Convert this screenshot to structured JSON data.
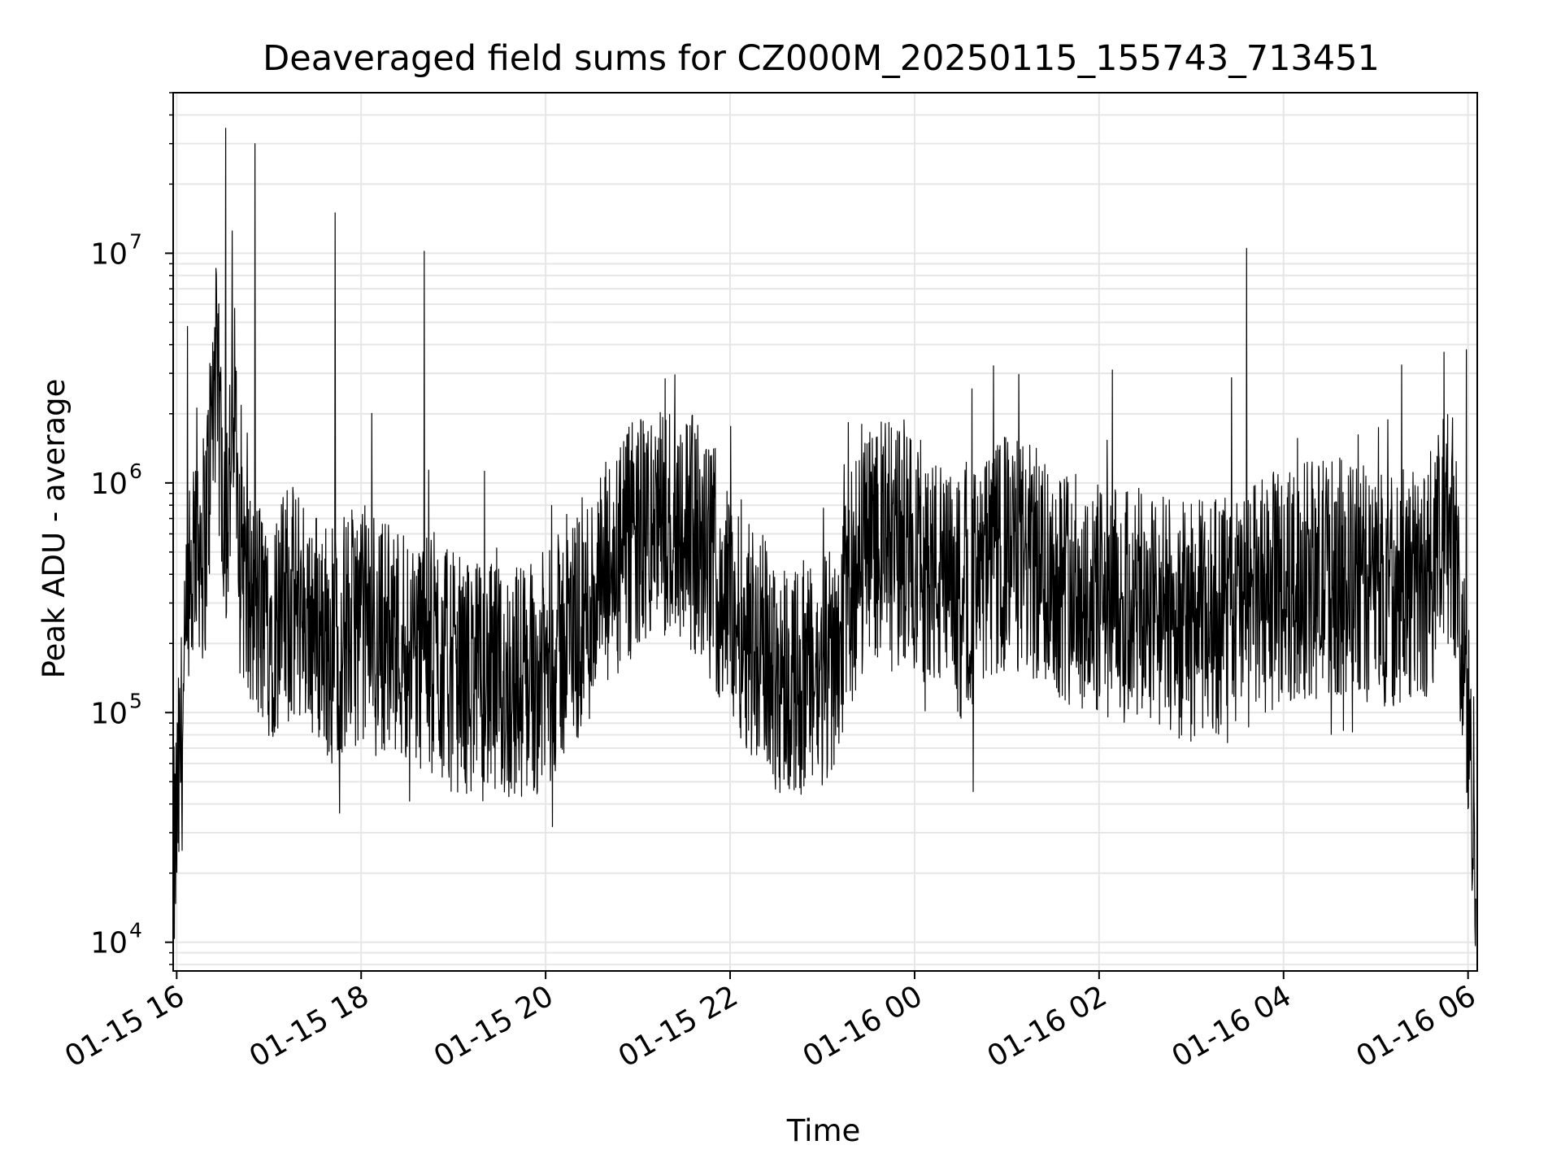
{
  "chart_data": {
    "type": "line",
    "title": "Deaveraged field sums for CZ000M_20250115_155743_713451",
    "xlabel": "Time",
    "ylabel": "Peak ADU - average",
    "yscale": "log",
    "ylim": [
      7500,
      50000000
    ],
    "xlim": [
      "2025-01-15T15:57:43",
      "2025-01-16T06:06:00"
    ],
    "grid": true,
    "line_color": "#000000",
    "grid_color": "#e6e6e6",
    "x_ticks": [
      "01-15 16",
      "01-15 18",
      "01-15 20",
      "01-15 22",
      "01-16 00",
      "01-16 02",
      "01-16 04",
      "01-16 06"
    ],
    "y_ticks": [
      {
        "base": "10",
        "exp": "4",
        "value": 10000
      },
      {
        "base": "10",
        "exp": "5",
        "value": 100000
      },
      {
        "base": "10",
        "exp": "6",
        "value": 1000000
      },
      {
        "base": "10",
        "exp": "7",
        "value": 10000000
      }
    ],
    "series": [
      {
        "x": [
          "2025-01-15T15:58",
          "2025-01-15T16:05",
          "2025-01-15T16:12",
          "2025-01-15T16:18",
          "2025-01-15T16:25",
          "2025-01-15T16:32",
          "2025-01-15T16:38",
          "2025-01-15T16:45",
          "2025-01-15T17:00",
          "2025-01-15T17:20",
          "2025-01-15T17:40",
          "2025-01-15T18:00",
          "2025-01-15T18:30",
          "2025-01-15T19:00",
          "2025-01-15T19:30",
          "2025-01-15T20:00",
          "2025-01-15T20:30",
          "2025-01-15T21:00",
          "2025-01-15T21:30",
          "2025-01-15T22:00",
          "2025-01-15T22:30",
          "2025-01-15T23:00",
          "2025-01-15T23:30",
          "2025-01-16T00:00",
          "2025-01-16T00:30",
          "2025-01-16T01:00",
          "2025-01-16T01:30",
          "2025-01-16T02:00",
          "2025-01-16T02:30",
          "2025-01-16T03:00",
          "2025-01-16T03:30",
          "2025-01-16T04:00",
          "2025-01-16T04:30",
          "2025-01-16T05:00",
          "2025-01-16T05:30",
          "2025-01-16T05:50",
          "2025-01-16T06:05"
        ],
        "y": [
          20000,
          120000,
          700000,
          500000,
          3000000,
          700000,
          2000000,
          300000,
          250000,
          300000,
          200000,
          250000,
          200000,
          150000,
          130000,
          150000,
          300000,
          600000,
          700000,
          300000,
          150000,
          130000,
          600000,
          500000,
          300000,
          500000,
          400000,
          300000,
          280000,
          250000,
          280000,
          350000,
          400000,
          350000,
          350000,
          700000,
          30000
        ]
      }
    ],
    "spikes": [
      {
        "x": "2025-01-15T16:07",
        "y": 4800000
      },
      {
        "x": "2025-01-15T16:32",
        "y": 35000000
      },
      {
        "x": "2025-01-15T16:36",
        "y": 12500000
      },
      {
        "x": "2025-01-15T16:51",
        "y": 30000000
      },
      {
        "x": "2025-01-15T17:43",
        "y": 15000000
      },
      {
        "x": "2025-01-15T18:41",
        "y": 10200000
      },
      {
        "x": "2025-01-16T03:36",
        "y": 10500000
      },
      {
        "x": "2025-01-16T05:59",
        "y": 3800000
      }
    ]
  }
}
